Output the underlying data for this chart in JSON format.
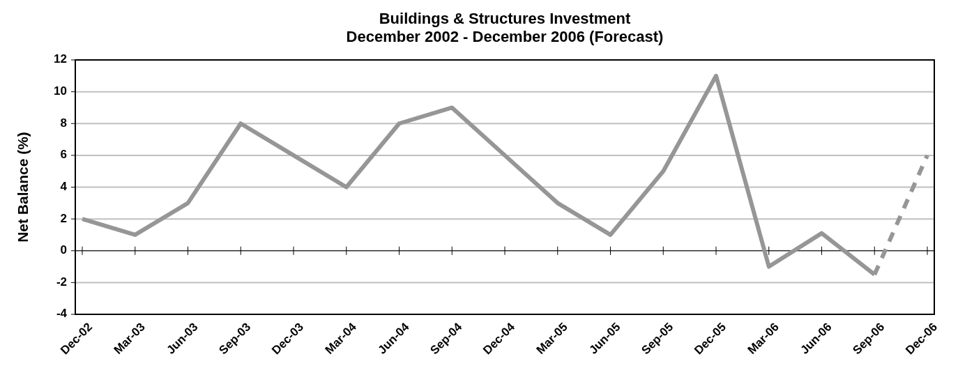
{
  "chart_data": {
    "type": "line",
    "title": "Buildings & Structures Investment",
    "subtitle": "December 2002 - December 2006 (Forecast)",
    "ylabel": "Net Balance (%)",
    "categories": [
      "Dec-02",
      "Mar-03",
      "Jun-03",
      "Sep-03",
      "Dec-03",
      "Mar-04",
      "Jun-04",
      "Sep-04",
      "Dec-04",
      "Mar-05",
      "Jun-05",
      "Sep-05",
      "Dec-05",
      "Mar-06",
      "Jun-06",
      "Sep-06",
      "Dec-06"
    ],
    "series": [
      {
        "color": "#969696",
        "line_style": "solid",
        "values": [
          2,
          1,
          3,
          8,
          6,
          4,
          8,
          9,
          6,
          3,
          1,
          5,
          11,
          -1,
          1.1,
          -1.5,
          null
        ]
      },
      {
        "color": "#969696",
        "line_style": "dashed",
        "values": [
          null,
          null,
          null,
          null,
          null,
          null,
          null,
          null,
          null,
          null,
          null,
          null,
          null,
          null,
          null,
          -1.5,
          6
        ]
      }
    ],
    "ylim": [
      -4,
      12
    ],
    "yticks": [
      -4,
      -2,
      0,
      2,
      4,
      6,
      8,
      10,
      12
    ],
    "grid": "y",
    "marker": "none"
  }
}
